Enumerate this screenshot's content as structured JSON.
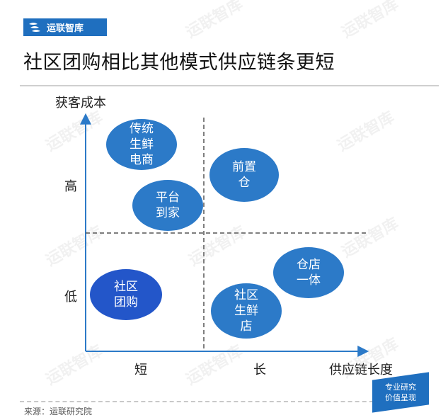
{
  "brand": {
    "name": "运联智库"
  },
  "title": "社区团购相比其他模式供应链条更短",
  "axes": {
    "y_label": "获客成本",
    "x_label": "供应链长度",
    "y_ticks": {
      "high": "高",
      "low": "低"
    },
    "x_ticks": {
      "short": "短",
      "long": "长"
    }
  },
  "bubbles": {
    "traditional_fresh_ecommerce": "传统\n生鲜\n电商",
    "front_warehouse": "前置\n仓",
    "platform_to_home": "平台\n到家",
    "store_warehouse_integrated": "仓店\n一体",
    "community_group_buying": "社区\n团购",
    "community_fresh_store": "社区\n生鲜\n店"
  },
  "colors": {
    "accent": "#1f6fbf",
    "bubble": "#2c7ac8",
    "highlight_bubble": "#2356c9",
    "axis": "#2c7ac8"
  },
  "footer": {
    "source": "来源：运联研究院"
  },
  "badge": {
    "line1": "专业研究",
    "line2": "价值呈现"
  }
}
